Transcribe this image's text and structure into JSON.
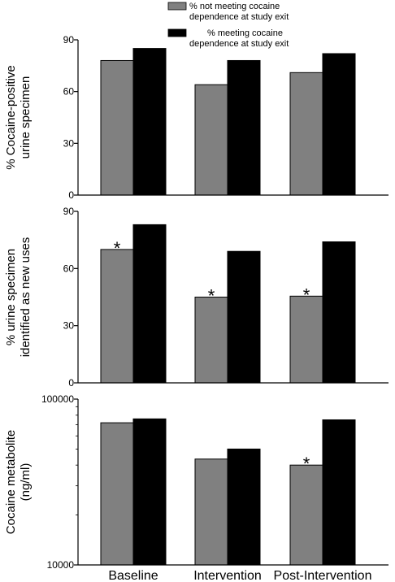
{
  "legend": {
    "entries": [
      {
        "line1": "% not meeting cocaine",
        "line2": "dependence at study exit",
        "color": "#808080"
      },
      {
        "line1": "% meeting cocaine",
        "line2": "dependence at study exit",
        "color": "#000000"
      }
    ],
    "placement": "top-right"
  },
  "chart_data": [
    {
      "type": "bar",
      "categories": [
        "Baseline",
        "Intervention",
        "Post-Intervention"
      ],
      "ylabel_lines": [
        "% Cocaine-positive",
        "urine specimen"
      ],
      "ylim": [
        0,
        90
      ],
      "yticks": [
        "0",
        "30",
        "60",
        "90"
      ],
      "yscale": "linear",
      "series": [
        {
          "name": "% not meeting cocaine dependence at study exit",
          "values": [
            78,
            64,
            71
          ],
          "color": "#808080"
        },
        {
          "name": "% meeting cocaine dependence at study exit",
          "values": [
            85,
            78,
            82
          ],
          "color": "#000000"
        }
      ],
      "annotations": []
    },
    {
      "type": "bar",
      "categories": [
        "Baseline",
        "Intervention",
        "Post-Intervention"
      ],
      "ylabel_lines": [
        "% urine specimen",
        "identified as new uses"
      ],
      "ylim": [
        0,
        90
      ],
      "yticks": [
        "0",
        "30",
        "60",
        "90"
      ],
      "yscale": "linear",
      "series": [
        {
          "name": "% not meeting cocaine dependence at study exit",
          "values": [
            70,
            45,
            45.5
          ],
          "color": "#808080"
        },
        {
          "name": "% meeting cocaine dependence at study exit",
          "values": [
            83,
            69,
            74
          ],
          "color": "#000000"
        }
      ],
      "annotations": [
        {
          "text": "*",
          "category": 0,
          "series": 0
        },
        {
          "text": "*",
          "category": 1,
          "series": 0
        },
        {
          "text": "*",
          "category": 2,
          "series": 0
        }
      ]
    },
    {
      "type": "bar",
      "categories": [
        "Baseline",
        "Intervention",
        "Post-Intervention"
      ],
      "ylabel_lines": [
        "Cocaine metabolite",
        "(ng/ml)"
      ],
      "ylim": [
        10000,
        100000
      ],
      "yticks": [
        "10000",
        "100000"
      ],
      "yscale": "log",
      "series": [
        {
          "name": "% not meeting cocaine dependence at study exit",
          "values": [
            72000,
            43500,
            40000
          ],
          "color": "#808080"
        },
        {
          "name": "% meeting cocaine dependence at study exit",
          "values": [
            76000,
            50000,
            75000
          ],
          "color": "#000000"
        }
      ],
      "annotations": [
        {
          "text": "*",
          "category": 2,
          "series": 0
        }
      ]
    }
  ]
}
